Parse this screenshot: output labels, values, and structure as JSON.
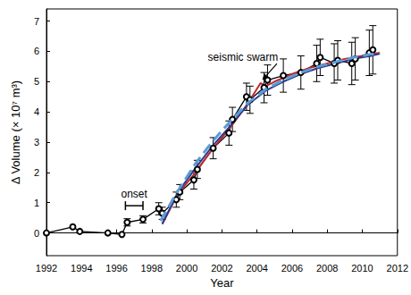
{
  "chart_data": {
    "type": "line",
    "x_label": "Year",
    "y_label": "Δ Volume (× 10⁷ m³)",
    "xlim": [
      1992,
      2012
    ],
    "xticks": [
      1992,
      1994,
      1996,
      1998,
      2000,
      2002,
      2004,
      2006,
      2008,
      2010,
      2012
    ],
    "ylim": [
      -0.75,
      7.4
    ],
    "yticks": [
      0,
      1,
      2,
      3,
      4,
      5,
      6,
      7
    ],
    "grid": false,
    "series": [
      {
        "color": "#000000",
        "marker": "open_circle",
        "line_style": "solid",
        "x": [
          1992.0,
          1993.5,
          1993.9,
          1995.5,
          1996.3,
          1996.6,
          1997.5,
          1998.4,
          1998.6,
          1999.4,
          1999.6,
          2000.4,
          2000.6,
          2001.5,
          2002.4,
          2002.6,
          2003.4,
          2003.6,
          2004.4,
          2004.6,
          2005.5,
          2006.5,
          2007.4,
          2007.6,
          2008.4,
          2008.6,
          2009.4,
          2009.6,
          2010.4,
          2010.6
        ],
        "values": [
          0,
          0.2,
          0.05,
          0.0,
          -0.05,
          0.35,
          0.45,
          0.8,
          0.65,
          1.1,
          1.35,
          1.75,
          2.1,
          2.8,
          3.3,
          3.75,
          4.5,
          4.4,
          4.8,
          5.05,
          5.2,
          5.3,
          5.6,
          5.8,
          5.6,
          5.7,
          5.6,
          5.75,
          5.95,
          6.05
        ],
        "errors": [
          null,
          null,
          null,
          null,
          null,
          0.12,
          0.12,
          0.2,
          0.2,
          0.25,
          0.25,
          0.3,
          0.3,
          0.35,
          0.4,
          0.4,
          0.45,
          0.45,
          0.5,
          0.5,
          0.55,
          0.55,
          0.6,
          0.6,
          0.65,
          0.65,
          0.7,
          0.7,
          0.75,
          0.8
        ]
      },
      {
        "color": "#c0272d",
        "marker": "none",
        "line_style": "solid",
        "x": [
          1998.6,
          1999.5,
          2000.5,
          2001.5,
          2002.5,
          2003.5,
          2004.2,
          2004.5,
          2005.0,
          2006.0,
          2007.0,
          2008.0,
          2009.0,
          2010.0,
          2011.0
        ],
        "values": [
          0.3,
          1.3,
          2.0,
          2.8,
          3.5,
          4.3,
          4.95,
          4.85,
          5.0,
          5.25,
          5.45,
          5.6,
          5.75,
          5.85,
          5.95
        ]
      },
      {
        "color": "#2b3a8c",
        "marker": "none",
        "line_style": "solid",
        "x": [
          1998.6,
          1999.5,
          2000.5,
          2001.5,
          2002.5,
          2003.5,
          2004.5,
          2005.5,
          2006.5,
          2007.5,
          2008.5,
          2009.5,
          2010.5,
          2011.0
        ],
        "values": [
          0.3,
          1.35,
          2.15,
          2.9,
          3.55,
          4.25,
          4.7,
          5.0,
          5.25,
          5.45,
          5.6,
          5.75,
          5.85,
          5.92
        ]
      },
      {
        "color": "#5b9bd5",
        "marker": "none",
        "line_style": "dashed",
        "x": [
          1998.5,
          1999.5,
          2000.5,
          2001.5,
          2002.5,
          2003.5,
          2004.5,
          2005.5,
          2006.5,
          2007.5,
          2008.5,
          2009.5,
          2010.5,
          2011.0
        ],
        "values": [
          0.4,
          1.4,
          2.3,
          3.05,
          3.7,
          4.3,
          4.75,
          5.05,
          5.3,
          5.5,
          5.65,
          5.8,
          5.9,
          5.95
        ]
      }
    ],
    "annotations": [
      {
        "text": "onset",
        "x": 1997,
        "y": 1.3,
        "span": [
          1996.5,
          1997.5
        ],
        "span_y": 0.9
      },
      {
        "text": "seismic swarm",
        "x": 2003.2,
        "y": 5.8,
        "arrow_to": [
          2004.3,
          5.05
        ]
      }
    ]
  }
}
